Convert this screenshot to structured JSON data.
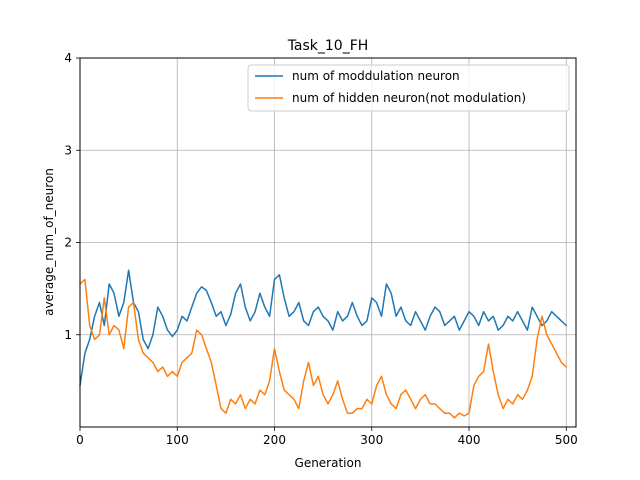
{
  "chart_data": {
    "type": "line",
    "title": "Task_10_FH",
    "xlabel": "Generation",
    "ylabel": "average_num_of_neuron",
    "xlim": [
      0,
      510
    ],
    "ylim": [
      0,
      4
    ],
    "x_ticks": [
      0,
      100,
      200,
      300,
      400,
      500
    ],
    "y_ticks": [
      1,
      2,
      3,
      4
    ],
    "grid": true,
    "legend_position": "top-right",
    "series": [
      {
        "name": "num of moddulation neuron",
        "color": "#1f77b4",
        "x": [
          0,
          5,
          10,
          15,
          20,
          25,
          30,
          35,
          40,
          45,
          50,
          55,
          60,
          65,
          70,
          75,
          80,
          85,
          90,
          95,
          100,
          105,
          110,
          115,
          120,
          125,
          130,
          135,
          140,
          145,
          150,
          155,
          160,
          165,
          170,
          175,
          180,
          185,
          190,
          195,
          200,
          205,
          210,
          215,
          220,
          225,
          230,
          235,
          240,
          245,
          250,
          255,
          260,
          265,
          270,
          275,
          280,
          285,
          290,
          295,
          300,
          305,
          310,
          315,
          320,
          325,
          330,
          335,
          340,
          345,
          350,
          355,
          360,
          365,
          370,
          375,
          380,
          385,
          390,
          395,
          400,
          405,
          410,
          415,
          420,
          425,
          430,
          435,
          440,
          445,
          450,
          455,
          460,
          465,
          470,
          475,
          480,
          485,
          490,
          495,
          500
        ],
        "y": [
          0.45,
          0.8,
          0.95,
          1.2,
          1.35,
          1.1,
          1.55,
          1.45,
          1.2,
          1.35,
          1.7,
          1.35,
          1.25,
          0.95,
          0.85,
          1.0,
          1.3,
          1.2,
          1.05,
          0.98,
          1.05,
          1.2,
          1.15,
          1.3,
          1.45,
          1.52,
          1.48,
          1.35,
          1.2,
          1.25,
          1.1,
          1.22,
          1.45,
          1.55,
          1.3,
          1.15,
          1.25,
          1.45,
          1.3,
          1.2,
          1.6,
          1.65,
          1.4,
          1.2,
          1.25,
          1.35,
          1.15,
          1.1,
          1.25,
          1.3,
          1.2,
          1.15,
          1.05,
          1.25,
          1.15,
          1.2,
          1.35,
          1.2,
          1.1,
          1.15,
          1.4,
          1.35,
          1.2,
          1.55,
          1.45,
          1.2,
          1.3,
          1.15,
          1.1,
          1.25,
          1.15,
          1.05,
          1.2,
          1.3,
          1.25,
          1.1,
          1.15,
          1.2,
          1.05,
          1.15,
          1.25,
          1.2,
          1.1,
          1.25,
          1.15,
          1.2,
          1.05,
          1.1,
          1.2,
          1.15,
          1.25,
          1.15,
          1.05,
          1.3,
          1.2,
          1.1,
          1.15,
          1.25,
          1.2,
          1.15,
          1.1
        ]
      },
      {
        "name": "num of hidden neuron(not modulation)",
        "color": "#ff7f0e",
        "x": [
          0,
          5,
          10,
          15,
          20,
          25,
          30,
          35,
          40,
          45,
          50,
          55,
          60,
          65,
          70,
          75,
          80,
          85,
          90,
          95,
          100,
          105,
          110,
          115,
          120,
          125,
          130,
          135,
          140,
          145,
          150,
          155,
          160,
          165,
          170,
          175,
          180,
          185,
          190,
          195,
          200,
          205,
          210,
          215,
          220,
          225,
          230,
          235,
          240,
          245,
          250,
          255,
          260,
          265,
          270,
          275,
          280,
          285,
          290,
          295,
          300,
          305,
          310,
          315,
          320,
          325,
          330,
          335,
          340,
          345,
          350,
          355,
          360,
          365,
          370,
          375,
          380,
          385,
          390,
          395,
          400,
          405,
          410,
          415,
          420,
          425,
          430,
          435,
          440,
          445,
          450,
          455,
          460,
          465,
          470,
          475,
          480,
          485,
          490,
          495,
          500
        ],
        "y": [
          1.55,
          1.6,
          1.1,
          0.95,
          1.0,
          1.4,
          1.0,
          1.1,
          1.05,
          0.85,
          1.3,
          1.35,
          0.95,
          0.8,
          0.75,
          0.7,
          0.6,
          0.65,
          0.55,
          0.6,
          0.55,
          0.7,
          0.75,
          0.8,
          1.05,
          1.0,
          0.85,
          0.7,
          0.45,
          0.2,
          0.15,
          0.3,
          0.25,
          0.35,
          0.2,
          0.3,
          0.25,
          0.4,
          0.35,
          0.5,
          0.85,
          0.6,
          0.4,
          0.35,
          0.3,
          0.2,
          0.5,
          0.7,
          0.45,
          0.55,
          0.35,
          0.25,
          0.35,
          0.5,
          0.3,
          0.15,
          0.15,
          0.2,
          0.2,
          0.3,
          0.25,
          0.45,
          0.55,
          0.35,
          0.25,
          0.2,
          0.35,
          0.4,
          0.3,
          0.2,
          0.3,
          0.35,
          0.25,
          0.25,
          0.2,
          0.15,
          0.15,
          0.1,
          0.15,
          0.12,
          0.15,
          0.45,
          0.55,
          0.6,
          0.9,
          0.6,
          0.35,
          0.2,
          0.3,
          0.25,
          0.35,
          0.3,
          0.4,
          0.55,
          0.95,
          1.2,
          1.0,
          0.9,
          0.8,
          0.7,
          0.65
        ]
      }
    ]
  }
}
